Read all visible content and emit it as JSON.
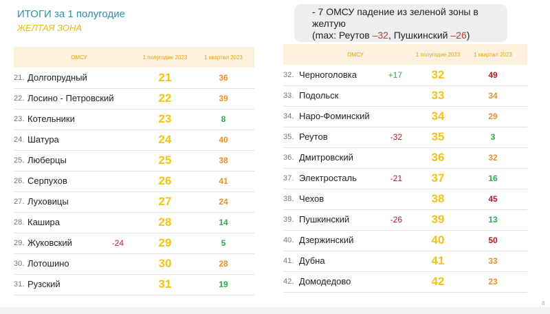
{
  "title": "ИТОГИ за 1 полугодие",
  "subtitle": "ЖЕЛТАЯ ЗОНА",
  "note": {
    "line1": "- 7 ОМСУ падение из  зеленой зоны в",
    "line2": "желтую",
    "line3_a": "(max: Реутов ",
    "line3_b": "–32",
    "line3_c": ", Пушкинский  ",
    "line3_d": "–26",
    "line3_e": ")"
  },
  "headers": {
    "omsu": "ОМСУ",
    "h1": "1 полугодие 2023",
    "q1_left": "1 квартал 2023",
    "q1_right": "1 квартал 2023"
  },
  "colors": {
    "green": "#2ea84a",
    "orange": "#e8912b",
    "red": "#b5182a",
    "dark_red": "#b5182a"
  },
  "left_rows": [
    {
      "num": "21.",
      "name": "Долгопрудный",
      "delta": "",
      "h1": "21",
      "q1": "36",
      "q1_color": "orange"
    },
    {
      "num": "22.",
      "name": "Лосино - Петровский",
      "delta": "",
      "h1": "22",
      "q1": "39",
      "q1_color": "orange"
    },
    {
      "num": "23.",
      "name": "Котельники",
      "delta": "",
      "h1": "23",
      "q1": "8",
      "q1_color": "green"
    },
    {
      "num": "24.",
      "name": "Шатура",
      "delta": "",
      "h1": "24",
      "q1": "40",
      "q1_color": "orange"
    },
    {
      "num": "25.",
      "name": "Люберцы",
      "delta": "",
      "h1": "25",
      "q1": "38",
      "q1_color": "orange"
    },
    {
      "num": "26.",
      "name": "Серпухов",
      "delta": "",
      "h1": "26",
      "q1": "41",
      "q1_color": "orange"
    },
    {
      "num": "27.",
      "name": "Луховицы",
      "delta": "",
      "h1": "27",
      "q1": "24",
      "q1_color": "orange"
    },
    {
      "num": "28.",
      "name": "Кашира",
      "delta": "",
      "h1": "28",
      "q1": "14",
      "q1_color": "green"
    },
    {
      "num": "29.",
      "name": "Жуковский",
      "delta": "-24",
      "h1": "29",
      "q1": "5",
      "q1_color": "green"
    },
    {
      "num": "30.",
      "name": "Лотошино",
      "delta": "",
      "h1": "30",
      "q1": "28",
      "q1_color": "orange"
    },
    {
      "num": "31.",
      "name": "Рузский",
      "delta": "",
      "h1": "31",
      "q1": "19",
      "q1_color": "green"
    }
  ],
  "right_rows": [
    {
      "num": "32.",
      "name": "Черноголовка",
      "delta": "+17",
      "h1": "32",
      "q1": "49",
      "q1_color": "red"
    },
    {
      "num": "33.",
      "name": "Подольск",
      "delta": "",
      "h1": "33",
      "q1": "34",
      "q1_color": "orange"
    },
    {
      "num": "34.",
      "name": "Наро-Фоминский",
      "delta": "",
      "h1": "34",
      "q1": "29",
      "q1_color": "orange"
    },
    {
      "num": "35.",
      "name": "Реутов",
      "delta": "-32",
      "h1": "35",
      "q1": "3",
      "q1_color": "green"
    },
    {
      "num": "36.",
      "name": "Дмитровский",
      "delta": "",
      "h1": "36",
      "q1": "32",
      "q1_color": "orange"
    },
    {
      "num": "37.",
      "name": "Электросталь",
      "delta": "-21",
      "h1": "37",
      "q1": "16",
      "q1_color": "green"
    },
    {
      "num": "38.",
      "name": "Чехов",
      "delta": "",
      "h1": "38",
      "q1": "45",
      "q1_color": "red"
    },
    {
      "num": "39.",
      "name": "Пушкинский",
      "delta": "-26",
      "h1": "39",
      "q1": "13",
      "q1_color": "green"
    },
    {
      "num": "40.",
      "name": "Дзержинский",
      "delta": "",
      "h1": "40",
      "q1": "50",
      "q1_color": "red"
    },
    {
      "num": "41.",
      "name": "Дубна",
      "delta": "",
      "h1": "41",
      "q1": "33",
      "q1_color": "orange"
    },
    {
      "num": "42.",
      "name": "Домодедово",
      "delta": "",
      "h1": "42",
      "q1": "23",
      "q1_color": "orange"
    }
  ],
  "page_number": "8"
}
